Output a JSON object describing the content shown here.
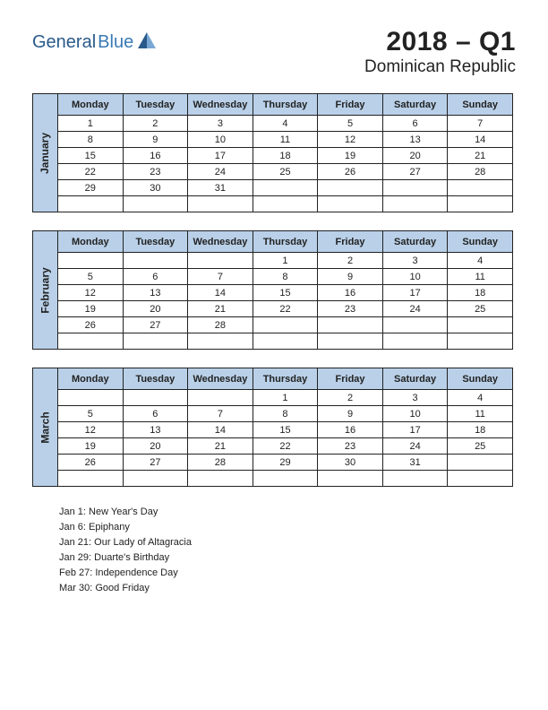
{
  "logo": {
    "part1": "General",
    "part2": "Blue"
  },
  "title": {
    "year_quarter": "2018 – Q1",
    "country": "Dominican Republic"
  },
  "colors": {
    "header_bg": "#b9d0e8",
    "border": "#222222",
    "holiday_text": "#c02020",
    "logo_dark": "#2a5a8a",
    "logo_light": "#3b7ab5"
  },
  "weekdays": [
    "Monday",
    "Tuesday",
    "Wednesday",
    "Thursday",
    "Friday",
    "Saturday",
    "Sunday"
  ],
  "months": [
    {
      "name": "January",
      "weeks": [
        [
          {
            "d": "1",
            "h": true
          },
          {
            "d": "2"
          },
          {
            "d": "3"
          },
          {
            "d": "4"
          },
          {
            "d": "5"
          },
          {
            "d": "6",
            "h": true
          },
          {
            "d": "7"
          }
        ],
        [
          {
            "d": "8"
          },
          {
            "d": "9"
          },
          {
            "d": "10"
          },
          {
            "d": "11"
          },
          {
            "d": "12"
          },
          {
            "d": "13"
          },
          {
            "d": "14"
          }
        ],
        [
          {
            "d": "15"
          },
          {
            "d": "16"
          },
          {
            "d": "17"
          },
          {
            "d": "18"
          },
          {
            "d": "19"
          },
          {
            "d": "20"
          },
          {
            "d": "21",
            "h": true
          }
        ],
        [
          {
            "d": "22"
          },
          {
            "d": "23"
          },
          {
            "d": "24"
          },
          {
            "d": "25"
          },
          {
            "d": "26"
          },
          {
            "d": "27"
          },
          {
            "d": "28"
          }
        ],
        [
          {
            "d": "29",
            "h": true
          },
          {
            "d": "30"
          },
          {
            "d": "31"
          },
          {
            "d": ""
          },
          {
            "d": ""
          },
          {
            "d": ""
          },
          {
            "d": ""
          }
        ],
        [
          {
            "d": ""
          },
          {
            "d": ""
          },
          {
            "d": ""
          },
          {
            "d": ""
          },
          {
            "d": ""
          },
          {
            "d": ""
          },
          {
            "d": ""
          }
        ]
      ]
    },
    {
      "name": "February",
      "weeks": [
        [
          {
            "d": ""
          },
          {
            "d": ""
          },
          {
            "d": ""
          },
          {
            "d": "1"
          },
          {
            "d": "2"
          },
          {
            "d": "3"
          },
          {
            "d": "4"
          }
        ],
        [
          {
            "d": "5"
          },
          {
            "d": "6"
          },
          {
            "d": "7"
          },
          {
            "d": "8"
          },
          {
            "d": "9"
          },
          {
            "d": "10"
          },
          {
            "d": "11"
          }
        ],
        [
          {
            "d": "12"
          },
          {
            "d": "13"
          },
          {
            "d": "14"
          },
          {
            "d": "15"
          },
          {
            "d": "16"
          },
          {
            "d": "17"
          },
          {
            "d": "18"
          }
        ],
        [
          {
            "d": "19"
          },
          {
            "d": "20"
          },
          {
            "d": "21"
          },
          {
            "d": "22"
          },
          {
            "d": "23"
          },
          {
            "d": "24"
          },
          {
            "d": "25"
          }
        ],
        [
          {
            "d": "26"
          },
          {
            "d": "27",
            "h": true
          },
          {
            "d": "28"
          },
          {
            "d": ""
          },
          {
            "d": ""
          },
          {
            "d": ""
          },
          {
            "d": ""
          }
        ],
        [
          {
            "d": ""
          },
          {
            "d": ""
          },
          {
            "d": ""
          },
          {
            "d": ""
          },
          {
            "d": ""
          },
          {
            "d": ""
          },
          {
            "d": ""
          }
        ]
      ]
    },
    {
      "name": "March",
      "weeks": [
        [
          {
            "d": ""
          },
          {
            "d": ""
          },
          {
            "d": ""
          },
          {
            "d": "1"
          },
          {
            "d": "2"
          },
          {
            "d": "3"
          },
          {
            "d": "4"
          }
        ],
        [
          {
            "d": "5"
          },
          {
            "d": "6"
          },
          {
            "d": "7"
          },
          {
            "d": "8"
          },
          {
            "d": "9"
          },
          {
            "d": "10"
          },
          {
            "d": "11"
          }
        ],
        [
          {
            "d": "12"
          },
          {
            "d": "13"
          },
          {
            "d": "14"
          },
          {
            "d": "15"
          },
          {
            "d": "16"
          },
          {
            "d": "17"
          },
          {
            "d": "18"
          }
        ],
        [
          {
            "d": "19"
          },
          {
            "d": "20"
          },
          {
            "d": "21"
          },
          {
            "d": "22"
          },
          {
            "d": "23"
          },
          {
            "d": "24"
          },
          {
            "d": "25"
          }
        ],
        [
          {
            "d": "26"
          },
          {
            "d": "27"
          },
          {
            "d": "28"
          },
          {
            "d": "29"
          },
          {
            "d": "30",
            "h": true
          },
          {
            "d": "31"
          },
          {
            "d": ""
          }
        ],
        [
          {
            "d": ""
          },
          {
            "d": ""
          },
          {
            "d": ""
          },
          {
            "d": ""
          },
          {
            "d": ""
          },
          {
            "d": ""
          },
          {
            "d": ""
          }
        ]
      ]
    }
  ],
  "holidays": [
    "Jan 1: New Year's Day",
    "Jan 6: Epiphany",
    "Jan 21: Our Lady of Altagracia",
    "Jan 29: Duarte's Birthday",
    "Feb 27: Independence Day",
    "Mar 30: Good Friday"
  ]
}
